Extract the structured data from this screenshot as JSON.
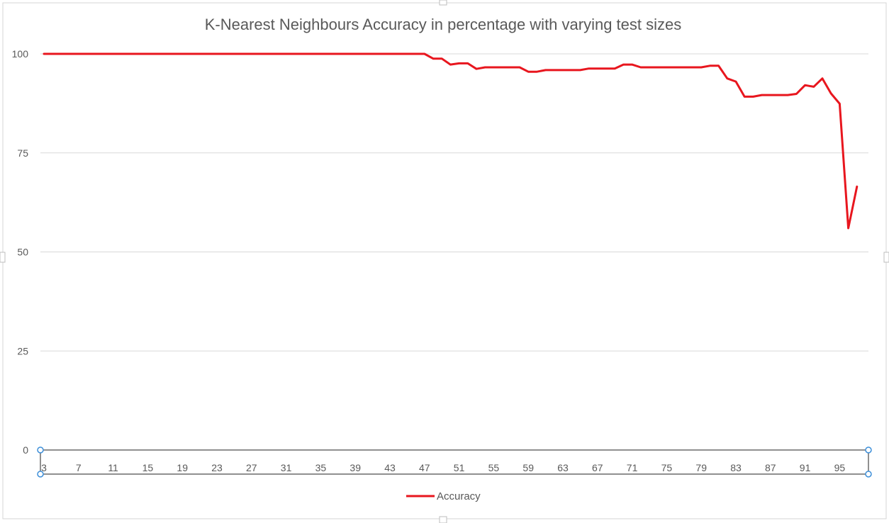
{
  "chart_data": {
    "type": "line",
    "title": "K-Nearest Neighbours Accuracy in percentage with varying test sizes",
    "xlabel": "",
    "ylabel": "",
    "x": [
      3,
      4,
      5,
      6,
      7,
      8,
      9,
      10,
      11,
      12,
      13,
      14,
      15,
      16,
      17,
      18,
      19,
      20,
      21,
      22,
      23,
      24,
      25,
      26,
      27,
      28,
      29,
      30,
      31,
      32,
      33,
      34,
      35,
      36,
      37,
      38,
      39,
      40,
      41,
      42,
      43,
      44,
      45,
      46,
      47,
      48,
      49,
      50,
      51,
      52,
      53,
      54,
      55,
      56,
      57,
      58,
      59,
      60,
      61,
      62,
      63,
      64,
      65,
      66,
      67,
      68,
      69,
      70,
      71,
      72,
      73,
      74,
      75,
      76,
      77,
      78,
      79,
      80,
      81,
      82,
      83,
      84,
      85,
      86,
      87,
      88,
      89,
      90,
      91,
      92,
      93,
      94,
      95,
      96,
      97
    ],
    "x_tick_labels": [
      "3",
      "7",
      "11",
      "15",
      "19",
      "23",
      "27",
      "31",
      "35",
      "39",
      "43",
      "47",
      "51",
      "55",
      "59",
      "63",
      "67",
      "71",
      "75",
      "79",
      "83",
      "87",
      "91",
      "95"
    ],
    "y_ticks": [
      0,
      25,
      50,
      75,
      100
    ],
    "ylim": [
      0,
      100
    ],
    "grid": true,
    "legend_position": "bottom",
    "series": [
      {
        "name": "Accuracy",
        "color": "#e8161e",
        "values": [
          100,
          100,
          100,
          100,
          100,
          100,
          100,
          100,
          100,
          100,
          100,
          100,
          100,
          100,
          100,
          100,
          100,
          100,
          100,
          100,
          100,
          100,
          100,
          100,
          100,
          100,
          100,
          100,
          100,
          100,
          100,
          100,
          100,
          100,
          100,
          100,
          100,
          100,
          100,
          100,
          100,
          100,
          100,
          100,
          100,
          98.8,
          98.8,
          97.3,
          97.6,
          97.6,
          96.2,
          96.6,
          96.6,
          96.6,
          96.6,
          96.6,
          95.5,
          95.5,
          95.9,
          95.9,
          95.9,
          95.9,
          95.9,
          96.3,
          96.3,
          96.3,
          96.3,
          97.3,
          97.3,
          96.6,
          96.6,
          96.6,
          96.6,
          96.6,
          96.6,
          96.6,
          96.6,
          97.0,
          97.0,
          93.8,
          93.0,
          89.2,
          89.2,
          89.6,
          89.6,
          89.6,
          89.6,
          89.9,
          92.1,
          91.7,
          93.8,
          90.0,
          87.4,
          56.0,
          66.5
        ]
      }
    ]
  }
}
